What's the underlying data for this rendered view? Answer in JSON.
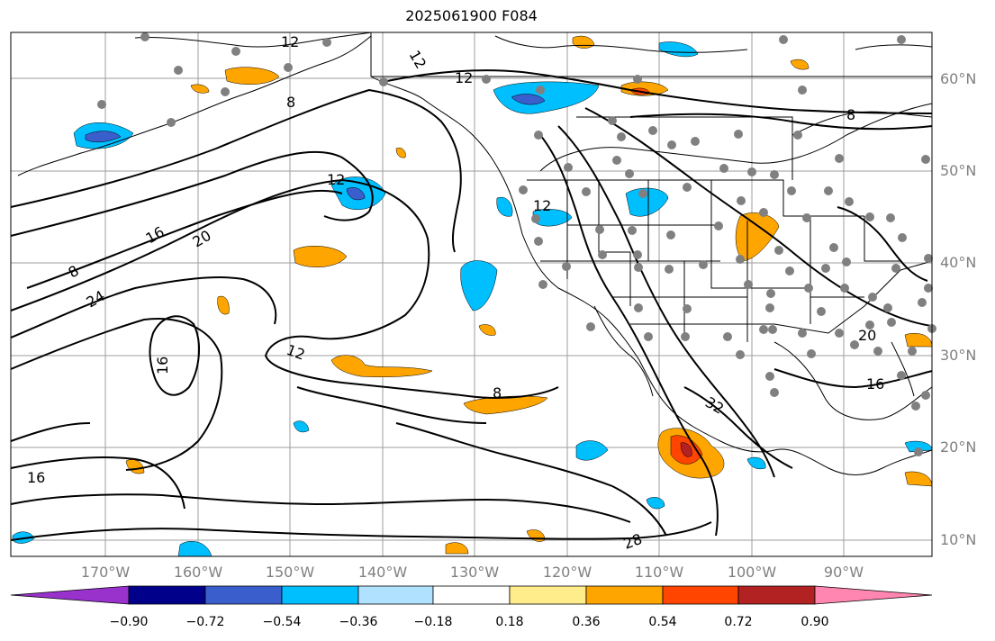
{
  "title": "2025061900 F084",
  "lat_labels": [
    "60°N",
    "50°N",
    "40°N",
    "30°N",
    "20°N",
    "10°N"
  ],
  "lon_labels": [
    "170°W",
    "160°W",
    "150°W",
    "140°W",
    "130°W",
    "120°W",
    "110°W",
    "100°W",
    "90°W"
  ],
  "colorbar": {
    "ticks": [
      "−0.90",
      "−0.72",
      "−0.54",
      "−0.36",
      "−0.18",
      "0.18",
      "0.36",
      "0.54",
      "0.72",
      "0.90"
    ],
    "colors": [
      "#9932cc",
      "#00008b",
      "#3a5fcd",
      "#00bfff",
      "#b0e2ff",
      "#ffffff",
      "#ffec8b",
      "#ffa500",
      "#ff4500",
      "#b22222",
      "#ff86b0"
    ]
  },
  "contour_labels": [
    "12",
    "12",
    "12",
    "8",
    "8",
    "8",
    "8",
    "16",
    "20",
    "24",
    "12",
    "12",
    "16",
    "16",
    "16",
    "20",
    "28",
    "32",
    "12"
  ],
  "colors": {
    "land": "#000000",
    "grid": "#9e9e9e",
    "dot": "#808080"
  }
}
